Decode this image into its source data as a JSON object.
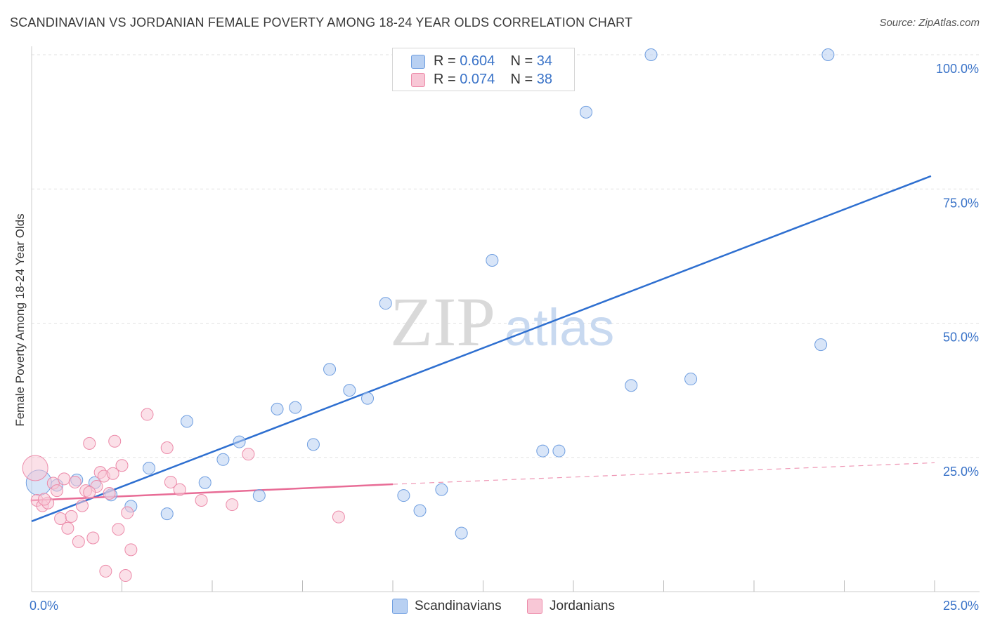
{
  "title": "SCANDINAVIAN VS JORDANIAN FEMALE POVERTY AMONG 18-24 YEAR OLDS CORRELATION CHART",
  "source": "Source: ZipAtlas.com",
  "watermark": {
    "zip": "ZIP",
    "atlas": "atlas"
  },
  "legend": {
    "rows": [
      {
        "r_label": "R =",
        "r_value": "0.604",
        "n_label": "N =",
        "n_value": "34",
        "color": "#6f9ee0",
        "fill": "#b8d0f2"
      },
      {
        "r_label": "R =",
        "r_value": "0.074",
        "n_label": "N =",
        "n_value": "38",
        "color": "#ec8aa9",
        "fill": "#f8c7d6"
      }
    ]
  },
  "bottom_legend": [
    {
      "label": "Scandinavians",
      "color": "#6f9ee0",
      "fill": "#b8d0f2"
    },
    {
      "label": "Jordanians",
      "color": "#ec8aa9",
      "fill": "#f8c7d6"
    }
  ],
  "chart_data": {
    "type": "scatter",
    "title": "SCANDINAVIAN VS JORDANIAN FEMALE POVERTY AMONG 18-24 YEAR OLDS CORRELATION CHART",
    "xlabel": "",
    "ylabel": "Female Poverty Among 18-24 Year Olds",
    "xlim": [
      0,
      25
    ],
    "ylim": [
      0,
      100
    ],
    "x_tick_labels": [
      {
        "value": 0,
        "label": "0.0%"
      },
      {
        "value": 25,
        "label": "25.0%"
      }
    ],
    "y_tick_labels": [
      {
        "value": 25,
        "label": "25.0%"
      },
      {
        "value": 50,
        "label": "50.0%"
      },
      {
        "value": 75,
        "label": "75.0%"
      },
      {
        "value": 100,
        "label": "100.0%"
      }
    ],
    "grid": true,
    "legend_position": "top-center",
    "series": [
      {
        "name": "Scandinavians",
        "color": "#6f9ee0",
        "fill": "#b8d0f2",
        "trend": {
          "x": [
            0,
            24.9
          ],
          "y": [
            13.1,
            77.4
          ],
          "style": "solid",
          "line_color": "#2e6fd0"
        },
        "points": [
          {
            "x": 0.2,
            "y": 20.3,
            "big": true
          },
          {
            "x": 0.7,
            "y": 19.8
          },
          {
            "x": 1.25,
            "y": 20.8
          },
          {
            "x": 1.75,
            "y": 20.3
          },
          {
            "x": 2.2,
            "y": 18.0
          },
          {
            "x": 2.75,
            "y": 15.9
          },
          {
            "x": 3.25,
            "y": 23.0
          },
          {
            "x": 3.75,
            "y": 14.5
          },
          {
            "x": 4.3,
            "y": 31.7
          },
          {
            "x": 4.8,
            "y": 20.3
          },
          {
            "x": 5.3,
            "y": 24.6
          },
          {
            "x": 5.75,
            "y": 27.9
          },
          {
            "x": 6.3,
            "y": 17.9
          },
          {
            "x": 6.8,
            "y": 34.0
          },
          {
            "x": 7.3,
            "y": 34.3
          },
          {
            "x": 7.8,
            "y": 27.4
          },
          {
            "x": 8.25,
            "y": 41.4
          },
          {
            "x": 8.8,
            "y": 37.5
          },
          {
            "x": 9.3,
            "y": 36.0
          },
          {
            "x": 9.8,
            "y": 53.7
          },
          {
            "x": 10.3,
            "y": 17.9
          },
          {
            "x": 10.75,
            "y": 15.1
          },
          {
            "x": 11.35,
            "y": 19.0
          },
          {
            "x": 11.4,
            "y": 100.0
          },
          {
            "x": 11.9,
            "y": 10.9
          },
          {
            "x": 12.75,
            "y": 61.7
          },
          {
            "x": 14.15,
            "y": 26.2
          },
          {
            "x": 14.6,
            "y": 26.2
          },
          {
            "x": 15.35,
            "y": 89.3
          },
          {
            "x": 16.6,
            "y": 38.4
          },
          {
            "x": 17.15,
            "y": 100.0
          },
          {
            "x": 18.25,
            "y": 39.6
          },
          {
            "x": 21.85,
            "y": 46.0
          },
          {
            "x": 22.05,
            "y": 100.0
          }
        ]
      },
      {
        "name": "Jordanians",
        "color": "#ec8aa9",
        "fill": "#f8c7d6",
        "trend": {
          "x": [
            0,
            10.0
          ],
          "y": [
            17.0,
            20.0
          ],
          "style": "solid",
          "line_color": "#e86c96",
          "ext": {
            "x": [
              10.0,
              25.0
            ],
            "y": [
              20.0,
              24.0
            ],
            "style": "dashed"
          }
        },
        "points": [
          {
            "x": 0.1,
            "y": 23.0,
            "big": true
          },
          {
            "x": 0.15,
            "y": 17.0
          },
          {
            "x": 0.3,
            "y": 16.0
          },
          {
            "x": 0.45,
            "y": 16.5
          },
          {
            "x": 0.6,
            "y": 20.2
          },
          {
            "x": 0.7,
            "y": 18.8
          },
          {
            "x": 0.8,
            "y": 13.6
          },
          {
            "x": 0.9,
            "y": 21.0
          },
          {
            "x": 1.0,
            "y": 11.8
          },
          {
            "x": 1.1,
            "y": 14.0
          },
          {
            "x": 1.2,
            "y": 20.4
          },
          {
            "x": 1.3,
            "y": 9.3
          },
          {
            "x": 1.4,
            "y": 16.0
          },
          {
            "x": 1.5,
            "y": 18.8
          },
          {
            "x": 1.6,
            "y": 27.6
          },
          {
            "x": 1.7,
            "y": 10.0
          },
          {
            "x": 1.8,
            "y": 19.6
          },
          {
            "x": 1.9,
            "y": 22.2
          },
          {
            "x": 2.0,
            "y": 21.5
          },
          {
            "x": 2.05,
            "y": 3.8
          },
          {
            "x": 2.15,
            "y": 18.3
          },
          {
            "x": 2.25,
            "y": 22.0
          },
          {
            "x": 2.3,
            "y": 28.0
          },
          {
            "x": 2.4,
            "y": 11.6
          },
          {
            "x": 2.5,
            "y": 23.5
          },
          {
            "x": 2.6,
            "y": 3.0
          },
          {
            "x": 2.65,
            "y": 14.7
          },
          {
            "x": 2.75,
            "y": 7.8
          },
          {
            "x": 3.2,
            "y": 33.0
          },
          {
            "x": 3.75,
            "y": 26.8
          },
          {
            "x": 3.85,
            "y": 20.4
          },
          {
            "x": 4.1,
            "y": 19.0
          },
          {
            "x": 4.7,
            "y": 17.0
          },
          {
            "x": 5.55,
            "y": 16.2
          },
          {
            "x": 6.0,
            "y": 25.6
          },
          {
            "x": 8.5,
            "y": 13.9
          },
          {
            "x": 0.35,
            "y": 17.2
          },
          {
            "x": 1.6,
            "y": 18.5
          }
        ]
      }
    ]
  }
}
